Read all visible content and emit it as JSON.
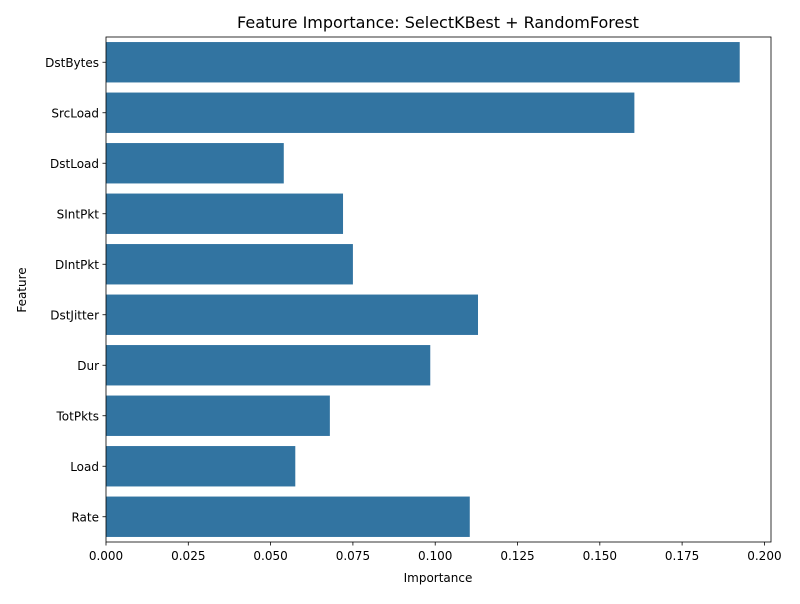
{
  "chart_data": {
    "type": "bar",
    "orientation": "horizontal",
    "title": "Feature Importance: SelectKBest + RandomForest",
    "xlabel": "Importance",
    "ylabel": "Feature",
    "categories": [
      "DstBytes",
      "SrcLoad",
      "DstLoad",
      "SIntPkt",
      "DIntPkt",
      "DstJitter",
      "Dur",
      "TotPkts",
      "Load",
      "Rate"
    ],
    "values": [
      0.1925,
      0.1605,
      0.054,
      0.072,
      0.075,
      0.113,
      0.0985,
      0.068,
      0.0575,
      0.1105
    ],
    "xlim": [
      0,
      0.202
    ],
    "x_ticks": [
      "0.000",
      "0.025",
      "0.050",
      "0.075",
      "0.100",
      "0.125",
      "0.150",
      "0.175",
      "0.200"
    ],
    "x_tick_values": [
      0,
      0.025,
      0.05,
      0.075,
      0.1,
      0.125,
      0.15,
      0.175,
      0.2
    ],
    "grid": false,
    "bar_color": "#3274a1"
  }
}
